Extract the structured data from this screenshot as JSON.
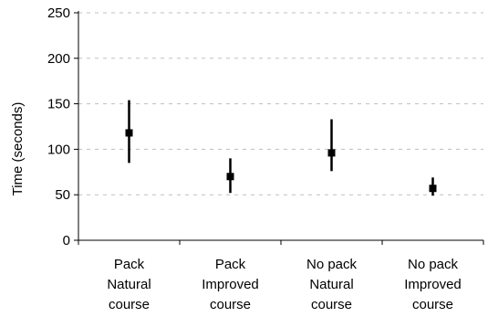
{
  "chart_data": {
    "type": "scatter",
    "title": "",
    "xlabel": "",
    "ylabel": "Time (seconds)",
    "ylim": [
      0,
      250
    ],
    "yticks": [
      0,
      50,
      100,
      150,
      200,
      250
    ],
    "grid": true,
    "categories": [
      [
        "Pack",
        "Natural",
        "course"
      ],
      [
        "Pack",
        "Improved",
        "course"
      ],
      [
        "No pack",
        "Natural",
        "course"
      ],
      [
        "No pack",
        "Improved",
        "course"
      ]
    ],
    "series": [
      {
        "values": [
          118,
          70,
          96,
          57
        ],
        "low": [
          85,
          52,
          76,
          49
        ],
        "high": [
          154,
          90,
          133,
          69
        ]
      }
    ],
    "colors": {
      "marker": "#000000",
      "grid": "#bfbfbf",
      "axis": "#000000"
    }
  }
}
